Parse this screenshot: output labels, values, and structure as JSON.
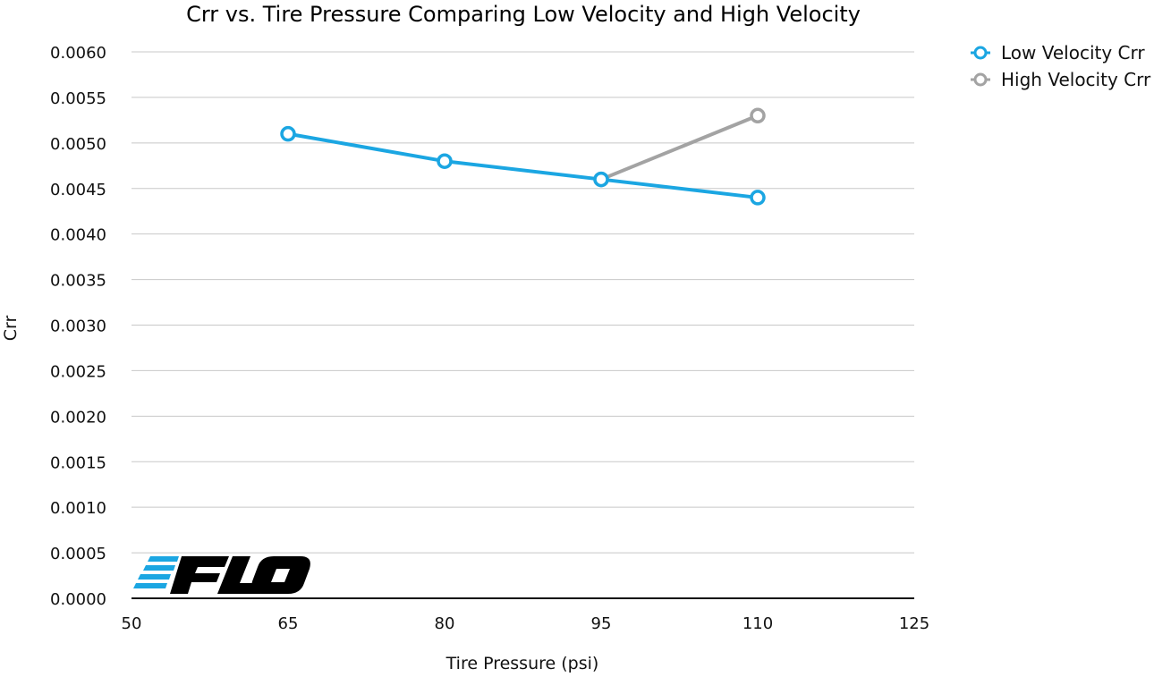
{
  "chart_data": {
    "type": "line",
    "title": "Crr vs. Tire Pressure Comparing Low Velocity and High Velocity",
    "xlabel": "Tire Pressure (psi)",
    "ylabel": "Crr",
    "xlim": [
      50,
      125
    ],
    "ylim": [
      0,
      0.006
    ],
    "x_ticks": [
      "50",
      "65",
      "80",
      "95",
      "110",
      "125"
    ],
    "y_ticks": [
      "0.0000",
      "0.0005",
      "0.0010",
      "0.0015",
      "0.0020",
      "0.0025",
      "0.0030",
      "0.0035",
      "0.0040",
      "0.0045",
      "0.0050",
      "0.0055",
      "0.0060"
    ],
    "grid": true,
    "legend_position": "top-right",
    "series": [
      {
        "name": "Low Velocity Crr",
        "color": "#1ba6e2",
        "x": [
          65,
          80,
          95,
          110
        ],
        "y": [
          0.0051,
          0.0048,
          0.0046,
          0.0044
        ]
      },
      {
        "name": "High Velocity Crr",
        "color": "#a3a3a3",
        "x": [
          95,
          110
        ],
        "y": [
          0.0046,
          0.0053
        ]
      }
    ]
  },
  "logo": {
    "text": "FLO",
    "icon": "flo-logo",
    "stripe_color": "#1ba6e2"
  }
}
